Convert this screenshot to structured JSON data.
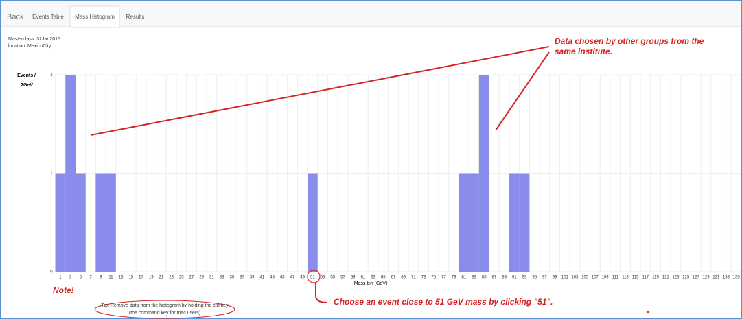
{
  "nav": {
    "back": "Back",
    "tabs": [
      "Events Table",
      "Mass Histogram",
      "Results"
    ],
    "active": 1
  },
  "info": {
    "masterclass": "Masterclass: 31Jan2015",
    "location": "location: MexicoCity"
  },
  "chart_data": {
    "type": "bar",
    "ylabel": [
      "Events /",
      "2GeV"
    ],
    "xlabel": "Mass bin (GeV)",
    "categories": [
      1,
      3,
      5,
      7,
      9,
      11,
      13,
      15,
      17,
      19,
      21,
      23,
      25,
      27,
      29,
      31,
      33,
      35,
      37,
      39,
      41,
      43,
      45,
      47,
      49,
      51,
      53,
      55,
      57,
      59,
      61,
      63,
      65,
      67,
      69,
      71,
      73,
      75,
      77,
      79,
      81,
      83,
      85,
      87,
      89,
      91,
      93,
      95,
      97,
      99,
      101,
      103,
      105,
      107,
      109,
      111,
      113,
      115,
      117,
      119,
      121,
      123,
      125,
      127,
      129,
      131,
      133,
      135
    ],
    "values": [
      1,
      2,
      1,
      0,
      1,
      1,
      0,
      0,
      0,
      0,
      0,
      0,
      0,
      0,
      0,
      0,
      0,
      0,
      0,
      0,
      0,
      0,
      0,
      0,
      0,
      1,
      0,
      0,
      0,
      0,
      0,
      0,
      0,
      0,
      0,
      0,
      0,
      0,
      0,
      0,
      1,
      1,
      2,
      0,
      0,
      1,
      1,
      0,
      0,
      0,
      0,
      0,
      0,
      0,
      0,
      0,
      0,
      0,
      0,
      0,
      0,
      0,
      0,
      0,
      0,
      0,
      0,
      0
    ],
    "color": "#8a8cec",
    "ylim": [
      0,
      2
    ],
    "yticks": [
      0,
      1,
      2
    ],
    "grid": true,
    "annotations": {
      "groups": [
        "Data chosen by other groups from the",
        "same institute."
      ],
      "choose": "Choose an event close to 51 GeV mass by clicking \"51\".",
      "note": "Note!",
      "tip": [
        "Tip: Remove data from the histogram by holding the ctrl key",
        "(the command key for mac users)"
      ]
    }
  }
}
